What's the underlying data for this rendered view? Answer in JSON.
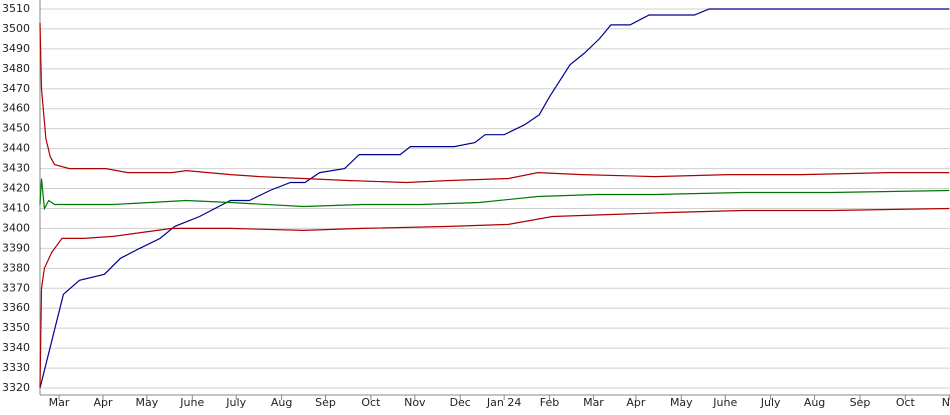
{
  "chart_data": {
    "type": "line",
    "xlim": [
      0,
      621.5
    ],
    "ylim": [
      3316.5,
      3514.5
    ],
    "yticks": [
      3320,
      3330,
      3340,
      3350,
      3360,
      3370,
      3380,
      3390,
      3400,
      3410,
      3420,
      3430,
      3440,
      3450,
      3460,
      3470,
      3480,
      3490,
      3500,
      3510
    ],
    "xticks": [
      {
        "value": 13,
        "label": "Mar"
      },
      {
        "value": 43,
        "label": "Apr"
      },
      {
        "value": 73,
        "label": "May"
      },
      {
        "value": 104,
        "label": "June"
      },
      {
        "value": 134,
        "label": "July"
      },
      {
        "value": 165,
        "label": "Aug"
      },
      {
        "value": 195,
        "label": "Sep"
      },
      {
        "value": 226,
        "label": "Oct"
      },
      {
        "value": 256,
        "label": "Nov"
      },
      {
        "value": 287,
        "label": "Dec"
      },
      {
        "value": 317,
        "label": "Jan 24"
      },
      {
        "value": 348,
        "label": "Feb"
      },
      {
        "value": 378,
        "label": "Mar"
      },
      {
        "value": 407,
        "label": "Apr"
      },
      {
        "value": 438,
        "label": "May"
      },
      {
        "value": 468,
        "label": "June"
      },
      {
        "value": 499,
        "label": "July"
      },
      {
        "value": 529,
        "label": "Aug"
      },
      {
        "value": 560,
        "label": "Sep"
      },
      {
        "value": 591,
        "label": "Oct"
      },
      {
        "value": 621,
        "label": "No"
      }
    ],
    "grid": true,
    "series": [
      {
        "color": "#00008f",
        "x": [
          0,
          16,
          27,
          44,
          55,
          68,
          82,
          92,
          109,
          130,
          143,
          157,
          171,
          181,
          191,
          208,
          218,
          246,
          253,
          283,
          297,
          304,
          317,
          331,
          341,
          348,
          362,
          372,
          382,
          390,
          403,
          416,
          447,
          457,
          621
        ],
        "values": [
          3320,
          3367,
          3374,
          3377,
          3385,
          3390,
          3395,
          3401,
          3406,
          3414,
          3414,
          3419,
          3423,
          3423,
          3428,
          3430,
          3437,
          3437,
          3441,
          3441,
          3443,
          3447,
          3447,
          3452,
          3457,
          3466,
          3482,
          3488,
          3495,
          3502,
          3502,
          3507,
          3507,
          3510,
          3510
        ]
      },
      {
        "color": "#b00000",
        "x": [
          0,
          1,
          4,
          7,
          10,
          20,
          45,
          60,
          90,
          100,
          130,
          150,
          180,
          210,
          250,
          280,
          320,
          340,
          370,
          420,
          470,
          520,
          580,
          621
        ],
        "values": [
          3503,
          3470,
          3445,
          3436,
          3432,
          3430,
          3430,
          3428,
          3428,
          3429,
          3427,
          3426,
          3425,
          3424,
          3423,
          3424,
          3425,
          3428,
          3427,
          3426,
          3427,
          3427,
          3428,
          3428
        ]
      },
      {
        "color": "#007700",
        "x": [
          0,
          1,
          3,
          6,
          10,
          50,
          100,
          130,
          180,
          220,
          260,
          300,
          340,
          380,
          420,
          480,
          540,
          621
        ],
        "values": [
          3412,
          3425,
          3410,
          3414,
          3412,
          3412,
          3414,
          3413,
          3411,
          3412,
          3412,
          3413,
          3416,
          3417,
          3417,
          3418,
          3418,
          3419
        ]
      },
      {
        "color": "#b00000",
        "x": [
          0,
          1,
          3,
          8,
          15,
          30,
          50,
          70,
          90,
          130,
          180,
          220,
          280,
          320,
          350,
          390,
          430,
          480,
          540,
          621
        ],
        "values": [
          3320,
          3370,
          3380,
          3388,
          3395,
          3395,
          3396,
          3398,
          3400,
          3400,
          3399,
          3400,
          3401,
          3402,
          3406,
          3407,
          3408,
          3409,
          3409,
          3410
        ]
      }
    ]
  }
}
